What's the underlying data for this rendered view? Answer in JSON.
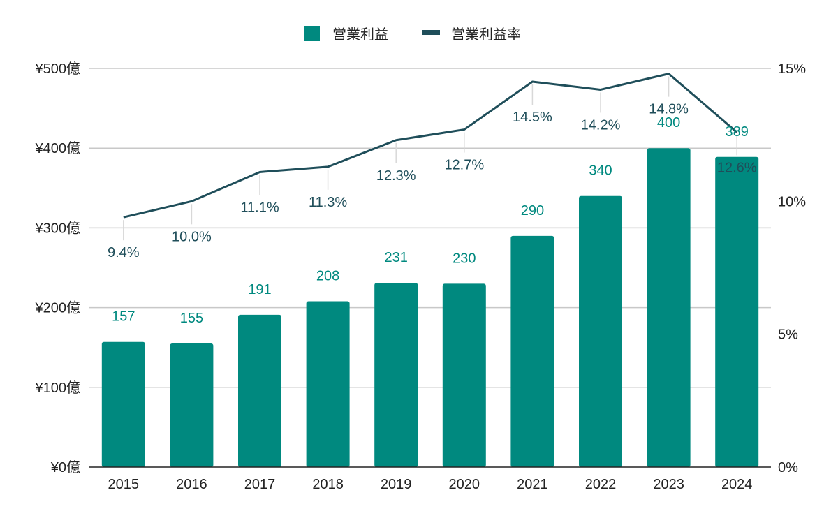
{
  "colors": {
    "bar": "#00897f",
    "line": "#1f4e5a",
    "grid": "#c8c8c8",
    "axis": "#222222"
  },
  "chart_data": {
    "type": "bar",
    "combo": "bar+line (secondary axis)",
    "categories": [
      "2015",
      "2016",
      "2017",
      "2018",
      "2019",
      "2020",
      "2021",
      "2022",
      "2023",
      "2024"
    ],
    "series": [
      {
        "name": "営業利益",
        "type": "bar",
        "axis": "left",
        "values": [
          157,
          155,
          191,
          208,
          231,
          230,
          290,
          340,
          400,
          389
        ],
        "labels": [
          "157",
          "155",
          "191",
          "208",
          "231",
          "230",
          "290",
          "340",
          "400",
          "389"
        ]
      },
      {
        "name": "営業利益率",
        "type": "line",
        "axis": "right",
        "values": [
          9.4,
          10.0,
          11.1,
          11.3,
          12.3,
          12.7,
          14.5,
          14.2,
          14.8,
          12.6
        ],
        "labels": [
          "9.4%",
          "10.0%",
          "11.1%",
          "11.3%",
          "12.3%",
          "12.7%",
          "14.5%",
          "14.2%",
          "14.8%",
          "12.6%"
        ]
      }
    ],
    "y_left": {
      "min": 0,
      "max": 500,
      "step": 100,
      "ticks": [
        "¥0億",
        "¥100億",
        "¥200億",
        "¥300億",
        "¥400億",
        "¥500億"
      ]
    },
    "y_right": {
      "min": 0,
      "max": 15,
      "step": 5,
      "ticks": [
        "0%",
        "5%",
        "10%",
        "15%"
      ]
    },
    "grid": true,
    "legend_position": "top-center"
  }
}
